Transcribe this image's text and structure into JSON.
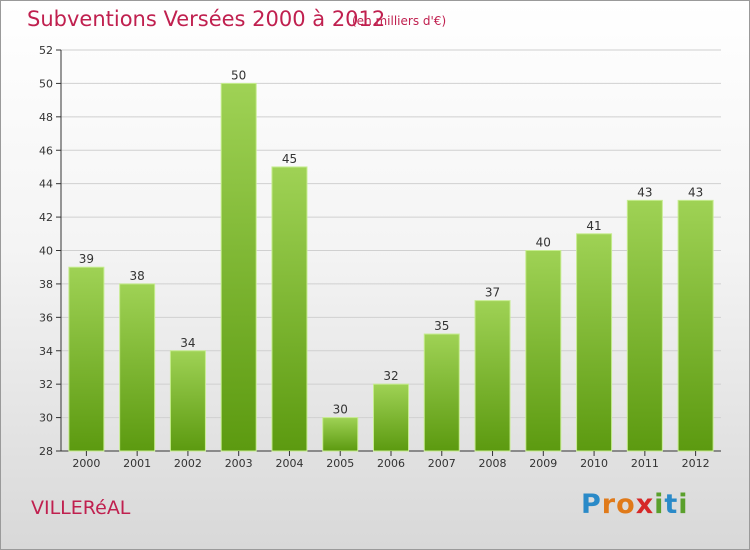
{
  "header": {
    "title": "Subventions Versées 2000 à 2012",
    "unit_note": "(en milliers d'€)"
  },
  "footer": {
    "place_name": "VILLERéAL",
    "brand": "Proxiti",
    "brand_letters": [
      {
        "char": "P",
        "color": "#2a8ac8"
      },
      {
        "char": "r",
        "color": "#e07a1a"
      },
      {
        "char": "o",
        "color": "#e07a1a"
      },
      {
        "char": "x",
        "color": "#d62828"
      },
      {
        "char": "i",
        "color": "#5aa02c"
      },
      {
        "char": "t",
        "color": "#2a8ac8"
      },
      {
        "char": "i",
        "color": "#5aa02c"
      }
    ]
  },
  "colors": {
    "bar_top": "#9fd255",
    "bar_bottom": "#5c9a10",
    "bar_edge": "#c6ec8f",
    "axis": "#333333",
    "grid": "#d0d0d0",
    "text": "#333333"
  },
  "chart_data": {
    "type": "bar",
    "title": "Subventions Versées 2000 à 2012",
    "subtitle": "(en milliers d'€)",
    "categories": [
      "2000",
      "2001",
      "2002",
      "2003",
      "2004",
      "2005",
      "2006",
      "2007",
      "2008",
      "2009",
      "2010",
      "2011",
      "2012"
    ],
    "values": [
      39,
      38,
      34,
      50,
      45,
      30,
      32,
      35,
      37,
      40,
      41,
      43,
      43
    ],
    "ylim": [
      28,
      52
    ],
    "yticks": [
      28,
      30,
      32,
      34,
      36,
      38,
      40,
      42,
      44,
      46,
      48,
      50,
      52
    ],
    "xlabel": "",
    "ylabel": "",
    "grid": true,
    "data_labels": true
  }
}
